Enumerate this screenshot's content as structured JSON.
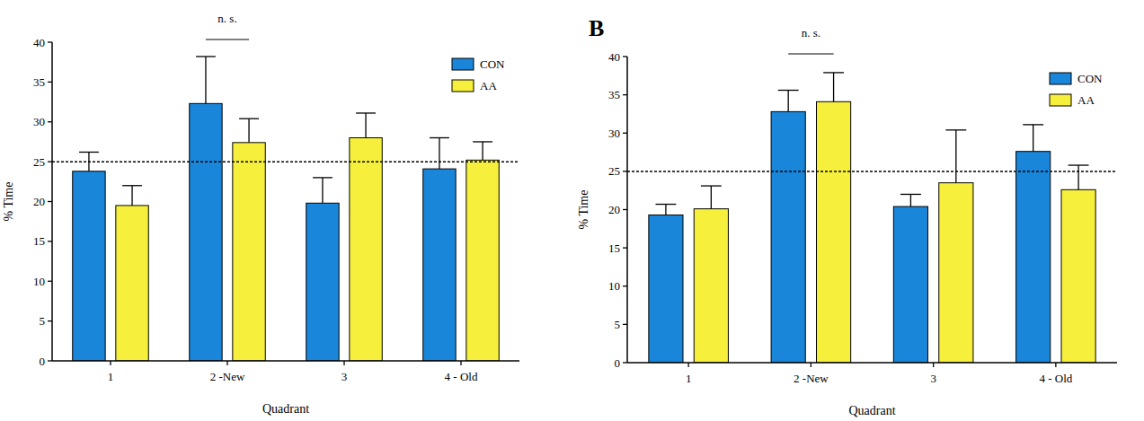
{
  "chart_data": [
    {
      "type": "bar",
      "x_label": "Quadrant",
      "y_label": "% Time",
      "categories": [
        "1",
        "2 -New",
        "3",
        "4 - Old"
      ],
      "series": [
        {
          "name": "CON",
          "color": "#1a86d9",
          "values": [
            23.8,
            32.3,
            19.8,
            24.1
          ],
          "errors": [
            2.4,
            5.9,
            3.2,
            3.9
          ]
        },
        {
          "name": "AA",
          "color": "#f6f03d",
          "values": [
            19.5,
            27.4,
            28.0,
            25.2
          ],
          "errors": [
            2.5,
            3.0,
            3.1,
            2.3
          ]
        }
      ],
      "ylim": [
        0,
        40
      ],
      "yticks": [
        0,
        5,
        10,
        15,
        20,
        25,
        30,
        35,
        40
      ],
      "reference_line": 25,
      "annotations": [
        {
          "text": "n. s.",
          "x": "2 -New"
        }
      ],
      "legend": "top-right"
    },
    {
      "type": "bar",
      "title": "B",
      "x_label": "Quadrant",
      "y_label": "% Time",
      "categories": [
        "1",
        "2 -New",
        "3",
        "4 - Old"
      ],
      "series": [
        {
          "name": "CON",
          "color": "#1a86d9",
          "values": [
            19.3,
            32.8,
            20.4,
            27.6
          ],
          "errors": [
            1.4,
            2.8,
            1.6,
            3.5
          ]
        },
        {
          "name": "AA",
          "color": "#f6f03d",
          "values": [
            20.1,
            34.1,
            23.5,
            22.6
          ],
          "errors": [
            3.0,
            3.8,
            6.9,
            3.2
          ]
        }
      ],
      "ylim": [
        0,
        40
      ],
      "yticks": [
        0,
        5,
        10,
        15,
        20,
        25,
        30,
        35,
        40
      ],
      "reference_line": 25,
      "annotations": [
        {
          "text": "n. s.",
          "x": "2 -New"
        }
      ],
      "legend": "top-right"
    }
  ]
}
